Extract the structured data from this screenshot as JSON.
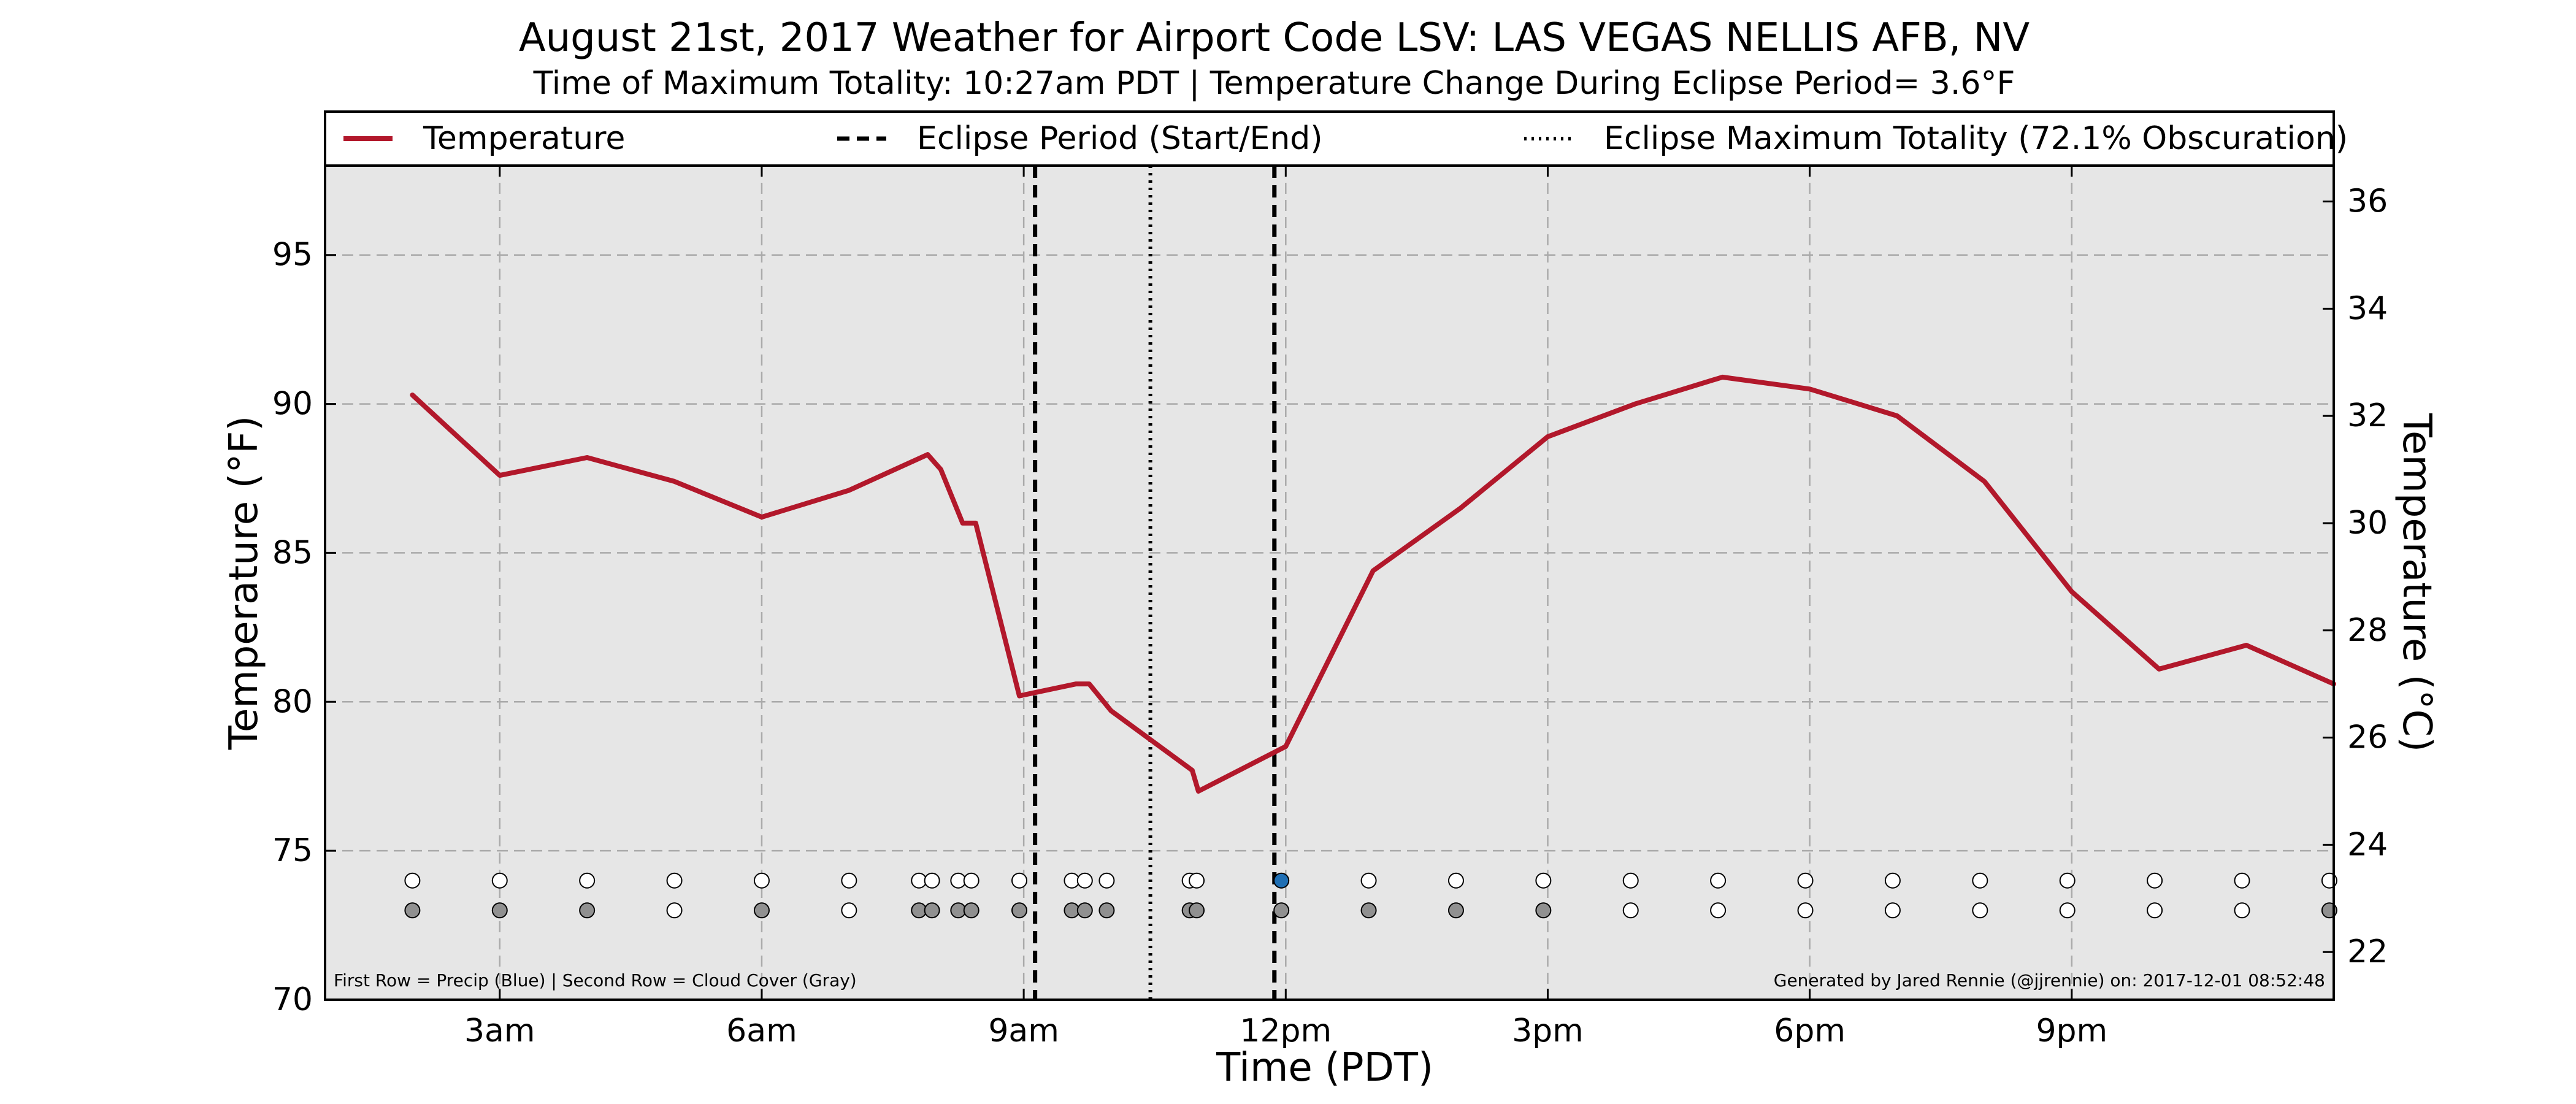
{
  "chart_data": {
    "type": "line",
    "title": "August 21st, 2017 Weather for Airport Code LSV: LAS VEGAS NELLIS AFB, NV",
    "subtitle": "Time of Maximum Totality: 10:27am PDT | Temperature Change During Eclipse Period= 3.6°F",
    "xlabel": "Time (PDT)",
    "ylabel": "Temperature (°F)",
    "y2label": "Temperature (°C)",
    "xlim": [
      1.0,
      24.0
    ],
    "ylim": [
      70,
      98
    ],
    "y2lim": [
      21.11,
      36.67
    ],
    "x_ticks": [
      {
        "x": 3,
        "label": "3am"
      },
      {
        "x": 6,
        "label": "6am"
      },
      {
        "x": 9,
        "label": "9am"
      },
      {
        "x": 12,
        "label": "12pm"
      },
      {
        "x": 15,
        "label": "3pm"
      },
      {
        "x": 18,
        "label": "6pm"
      },
      {
        "x": 21,
        "label": "9pm"
      }
    ],
    "y_ticks": [
      70,
      75,
      80,
      85,
      90,
      95
    ],
    "y2_ticks": [
      22,
      24,
      26,
      28,
      30,
      32,
      34,
      36
    ],
    "grid": true,
    "legend": {
      "placement": "top",
      "entries": [
        {
          "label": "Temperature",
          "style": "solid",
          "color": "#b2182b"
        },
        {
          "label": "Eclipse Period (Start/End)",
          "style": "dashed",
          "color": "#000000"
        },
        {
          "label": "Eclipse Maximum Totality (72.1% Obscuration)",
          "style": "dotted",
          "color": "#000000"
        }
      ]
    },
    "series": [
      {
        "name": "Temperature",
        "color": "#b2182b",
        "x": [
          2.0,
          3.0,
          4.0,
          5.0,
          6.0,
          7.0,
          7.9,
          8.05,
          8.3,
          8.45,
          8.95,
          9.6,
          9.75,
          10.0,
          10.93,
          11.0,
          12.0,
          13.0,
          14.0,
          15.0,
          16.0,
          17.0,
          18.0,
          19.0,
          20.0,
          21.0,
          22.0,
          23.0,
          24.0
        ],
        "y": [
          90.3,
          87.6,
          88.2,
          87.4,
          86.2,
          87.1,
          88.3,
          87.8,
          86.0,
          86.0,
          80.2,
          80.6,
          80.6,
          79.7,
          77.7,
          77.0,
          78.5,
          84.4,
          86.5,
          88.9,
          90.0,
          90.9,
          90.5,
          89.6,
          87.4,
          83.7,
          81.1,
          81.9,
          80.6
        ]
      }
    ],
    "eclipse_start_end": [
      9.13,
      11.87
    ],
    "eclipse_max": 10.45,
    "markers": {
      "x": [
        2.0,
        3.0,
        4.0,
        5.0,
        6.0,
        7.0,
        7.8,
        7.95,
        8.25,
        8.4,
        8.95,
        9.55,
        9.7,
        9.95,
        10.9,
        10.98,
        11.95,
        12.95,
        13.95,
        14.95,
        15.95,
        16.95,
        17.95,
        18.95,
        19.95,
        20.95,
        21.95,
        22.95,
        23.95
      ],
      "precip_row_y": 74.0,
      "cloud_row_y": 73.0,
      "precip": [
        0,
        0,
        0,
        0,
        0,
        0,
        0,
        0,
        0,
        0,
        0,
        0,
        0,
        0,
        0,
        0,
        1,
        0,
        0,
        0,
        0,
        0,
        0,
        0,
        0,
        0,
        0,
        0,
        0
      ],
      "cloud_cover": [
        1,
        1,
        1,
        0,
        1,
        0,
        1,
        1,
        1,
        1,
        1,
        1,
        1,
        1,
        1,
        1,
        1,
        1,
        1,
        1,
        0,
        0,
        0,
        0,
        0,
        0,
        0,
        0,
        1
      ]
    },
    "annotations": {
      "left": "First Row = Precip (Blue) | Second Row = Cloud Cover (Gray)",
      "right": "Generated by Jared Rennie (@jjrennie) on: 2017-12-01 08:52:48"
    },
    "colors": {
      "plot_background": "#e6e6e6",
      "line": "#b2182b",
      "grid": "#aaaaaa",
      "precip_marker": "#1f6fb4",
      "cloud_marker": "#909090"
    }
  }
}
